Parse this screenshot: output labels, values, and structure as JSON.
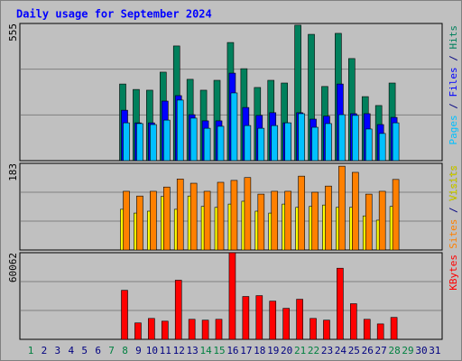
{
  "title": "Daily usage for September 2024",
  "chart_data": [
    {
      "type": "bar",
      "categories": [
        "1",
        "2",
        "3",
        "4",
        "5",
        "6",
        "7",
        "8",
        "9",
        "10",
        "11",
        "12",
        "13",
        "14",
        "15",
        "16",
        "17",
        "18",
        "19",
        "20",
        "21",
        "22",
        "23",
        "24",
        "25",
        "26",
        "27",
        "28",
        "29",
        "30",
        "31"
      ],
      "ylim": [
        0,
        555
      ],
      "yticks": [
        555
      ],
      "legend_separator": " / ",
      "series": [
        {
          "name": "Hits",
          "color": "#00805c",
          "values": [
            null,
            null,
            null,
            null,
            null,
            null,
            null,
            310,
            288,
            285,
            358,
            464,
            329,
            285,
            325,
            478,
            372,
            296,
            325,
            314,
            548,
            511,
            300,
            515,
            413,
            259,
            223,
            314,
            null,
            null,
            null
          ]
        },
        {
          "name": "Files",
          "color": "#0000ff",
          "values": [
            null,
            null,
            null,
            null,
            null,
            null,
            null,
            204,
            153,
            153,
            241,
            263,
            186,
            161,
            161,
            354,
            215,
            183,
            194,
            153,
            194,
            168,
            180,
            310,
            190,
            190,
            146,
            175,
            null,
            null,
            null
          ]
        },
        {
          "name": "Pages",
          "color": "#00c0ff",
          "values": [
            null,
            null,
            null,
            null,
            null,
            null,
            null,
            153,
            150,
            146,
            164,
            245,
            172,
            131,
            139,
            274,
            142,
            131,
            142,
            153,
            190,
            135,
            150,
            186,
            183,
            128,
            110,
            153,
            null,
            null,
            null
          ]
        }
      ]
    },
    {
      "type": "bar",
      "categories": [
        "1",
        "2",
        "3",
        "4",
        "5",
        "6",
        "7",
        "8",
        "9",
        "10",
        "11",
        "12",
        "13",
        "14",
        "15",
        "16",
        "17",
        "18",
        "19",
        "20",
        "21",
        "22",
        "23",
        "24",
        "25",
        "26",
        "27",
        "28",
        "29",
        "30",
        "31"
      ],
      "ylim": [
        0,
        183
      ],
      "yticks": [
        183
      ],
      "legend_separator": " / ",
      "series": [
        {
          "name": "Visits",
          "color": "#ffff00",
          "values": [
            null,
            null,
            null,
            null,
            null,
            null,
            null,
            86,
            78,
            82,
            113,
            86,
            114,
            92,
            90,
            97,
            103,
            82,
            78,
            97,
            90,
            92,
            95,
            90,
            90,
            72,
            63,
            92,
            null,
            null,
            null
          ]
        },
        {
          "name": "Sites",
          "color": "#ff8000",
          "values": [
            null,
            null,
            null,
            null,
            null,
            null,
            null,
            124,
            114,
            124,
            133,
            150,
            141,
            124,
            143,
            147,
            153,
            118,
            124,
            124,
            156,
            122,
            135,
            177,
            164,
            118,
            124,
            149,
            null,
            null,
            null
          ]
        }
      ]
    },
    {
      "type": "bar",
      "categories": [
        "1",
        "2",
        "3",
        "4",
        "5",
        "6",
        "7",
        "8",
        "9",
        "10",
        "11",
        "12",
        "13",
        "14",
        "15",
        "16",
        "17",
        "18",
        "19",
        "20",
        "21",
        "22",
        "23",
        "24",
        "25",
        "26",
        "27",
        "28",
        "29",
        "30",
        "31"
      ],
      "ylim": [
        0,
        60062
      ],
      "yticks": [
        60062
      ],
      "category_colors": [
        "#008040",
        "#000080",
        "#000080",
        "#000080",
        "#000080",
        "#000080",
        "#008040",
        "#008040",
        "#000080",
        "#000080",
        "#000080",
        "#000080",
        "#000080",
        "#008040",
        "#008040",
        "#000080",
        "#000080",
        "#000080",
        "#000080",
        "#000080",
        "#008040",
        "#008040",
        "#000080",
        "#000080",
        "#000080",
        "#000080",
        "#000080",
        "#008040",
        "#008040",
        "#000080",
        "#000080"
      ],
      "series": [
        {
          "name": "KBytes",
          "color": "#ff0000",
          "values": [
            null,
            null,
            null,
            null,
            null,
            null,
            null,
            34000,
            11400,
            14500,
            12600,
            41000,
            13900,
            13300,
            13900,
            60062,
            29700,
            30300,
            26500,
            21500,
            27800,
            14500,
            13300,
            49300,
            24700,
            13900,
            10700,
            15200,
            null,
            null,
            null
          ]
        }
      ]
    }
  ]
}
